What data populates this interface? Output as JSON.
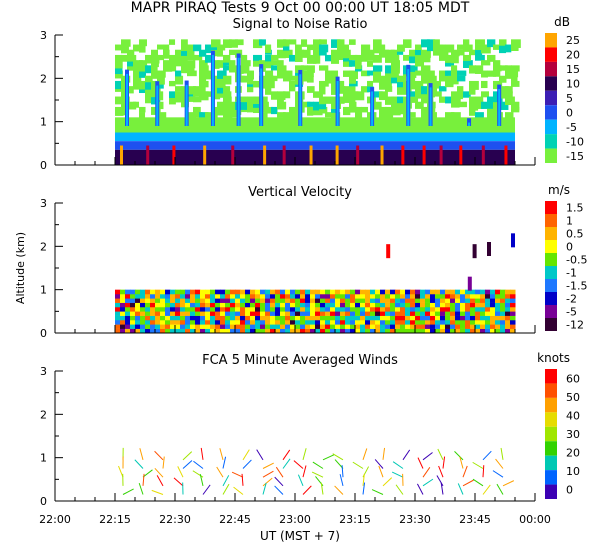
{
  "title": "MAPR PIRAQ Tests   9 Oct 00   00:00 UT   18:05   MDT",
  "x_axis": {
    "label": "UT   (MST + 7)",
    "ticks": [
      "22:00",
      "22:15",
      "22:30",
      "22:45",
      "23:00",
      "23:15",
      "23:30",
      "23:45",
      "00:00"
    ],
    "start": "22:00",
    "end": "00:00"
  },
  "y_axis_label": "Altitude (km)",
  "panels": [
    {
      "title": "Signal to Noise Ratio",
      "unit": "dB",
      "colorbar": {
        "labels": [
          "25",
          "20",
          "15",
          "10",
          "5",
          "0",
          "-5",
          "-10",
          "-15"
        ],
        "colors": [
          "#ffa500",
          "#ff0000",
          "#b4003c",
          "#280050",
          "#3c1eb4",
          "#1e50f0",
          "#00b4ff",
          "#00d2b4",
          "#78f03c"
        ]
      }
    },
    {
      "title": "Vertical Velocity",
      "unit": "m/s",
      "colorbar": {
        "labels": [
          "1.5",
          "1",
          "0.5",
          "0",
          "-0.5",
          "-1",
          "-1.5",
          "-2",
          "-5",
          "-12"
        ],
        "colors": [
          "#ff0000",
          "#ff6400",
          "#ffb400",
          "#ffff00",
          "#64e600",
          "#00c8c8",
          "#1e78ff",
          "#0000c8",
          "#780096",
          "#320032"
        ]
      }
    },
    {
      "title": "FCA 5 Minute Averaged Winds",
      "unit": "knots",
      "colorbar": {
        "labels": [
          "60",
          "50",
          "40",
          "30",
          "20",
          "10",
          "0"
        ],
        "colors": [
          "#ff0000",
          "#ff5000",
          "#ffa000",
          "#e6dc00",
          "#a0e600",
          "#32d200",
          "#00c8b4",
          "#0064ff",
          "#3c00b4"
        ]
      }
    }
  ],
  "chart_data": [
    {
      "type": "heatmap",
      "title": "Signal to Noise Ratio",
      "unit": "dB",
      "x_range": [
        "22:00",
        "00:00"
      ],
      "y_range_km": [
        0,
        3
      ],
      "data_start": "22:15",
      "data_end": "23:55",
      "layers": [
        {
          "alt_km": [
            0.0,
            0.35
          ],
          "snr_db": 8
        },
        {
          "alt_km": [
            0.35,
            0.55
          ],
          "snr_db": 0
        },
        {
          "alt_km": [
            0.55,
            0.75
          ],
          "snr_db": -7
        },
        {
          "alt_km": [
            0.75,
            1.1
          ],
          "snr_db": -14
        },
        {
          "alt_km": [
            1.1,
            2.9
          ],
          "snr_db": -15,
          "note": "patchy"
        }
      ]
    },
    {
      "type": "heatmap",
      "title": "Vertical Velocity",
      "unit": "m/s",
      "x_range": [
        "22:00",
        "00:00"
      ],
      "y_range_km": [
        0,
        3
      ],
      "data_start": "22:15",
      "data_end": "23:55",
      "layers": [
        {
          "alt_km": [
            0.0,
            0.9
          ],
          "velocity_ms": "mixed -2 to 1"
        }
      ]
    },
    {
      "type": "scatter",
      "title": "FCA 5 Minute Averaged Winds",
      "unit": "knots",
      "x_range": [
        "22:00",
        "00:00"
      ],
      "y_range_km": [
        0,
        3
      ],
      "times": [
        "22:17",
        "22:22",
        "22:27",
        "22:32",
        "22:37",
        "22:42",
        "22:47",
        "22:52",
        "22:57",
        "23:02",
        "23:07",
        "23:12",
        "23:17",
        "23:22",
        "23:27",
        "23:32",
        "23:37",
        "23:42",
        "23:47",
        "23:52"
      ],
      "alt_km": [
        0.95,
        0.75,
        0.55,
        0.35,
        0.15
      ]
    }
  ]
}
